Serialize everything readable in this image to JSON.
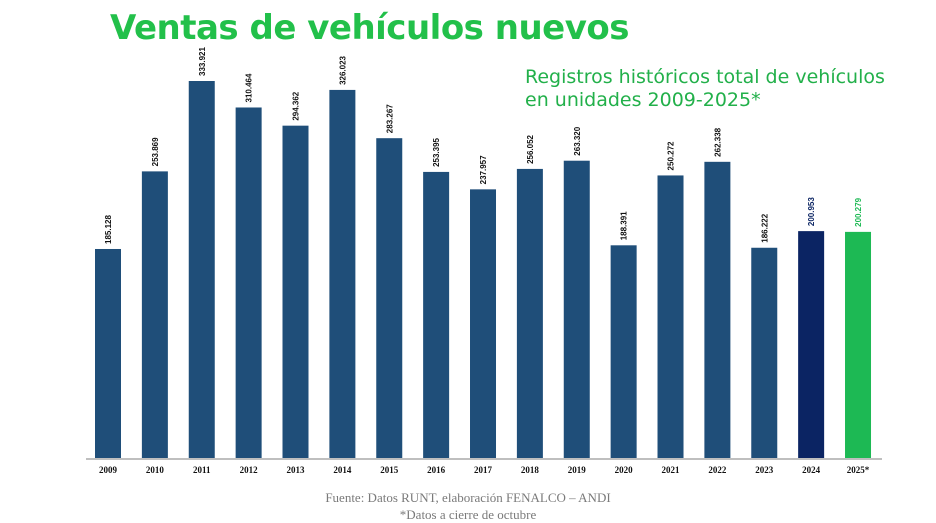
{
  "chart_data": {
    "type": "bar",
    "title": "Ventas de vehículos nuevos",
    "subtitle": [
      "Registros históricos total de  vehículos",
      "en unidades 2009-2025*"
    ],
    "categories": [
      "2009",
      "2010",
      "2011",
      "2012",
      "2013",
      "2014",
      "2015",
      "2016",
      "2017",
      "2018",
      "2019",
      "2020",
      "2021",
      "2022",
      "2023",
      "2024",
      "2025*"
    ],
    "values": [
      185128,
      253869,
      333921,
      310464,
      294362,
      326023,
      283267,
      253395,
      237957,
      256052,
      263320,
      188391,
      250272,
      262338,
      186222,
      200953,
      200279
    ],
    "data_labels": [
      "185.128",
      "253.869",
      "333.921",
      "310.464",
      "294.362",
      "326.023",
      "283.267",
      "253.395",
      "237.957",
      "256.052",
      "263.320",
      "188.391",
      "250.272",
      "262.338",
      "186.222",
      "200.953",
      "200.279"
    ],
    "ylim": [
      0,
      333921
    ],
    "grid": false,
    "colors": {
      "default": "#1f4e79",
      "2024": "#0b2463",
      "2025*": "#1db954",
      "title": "#22c04a"
    },
    "label_colors": {
      "default": "#111111",
      "2024": "#0b2463",
      "2025*": "#1db954"
    }
  },
  "footer": {
    "source": "Fuente: Datos RUNT, elaboración FENALCO – ANDI",
    "note": "*Datos a cierre de octubre"
  }
}
